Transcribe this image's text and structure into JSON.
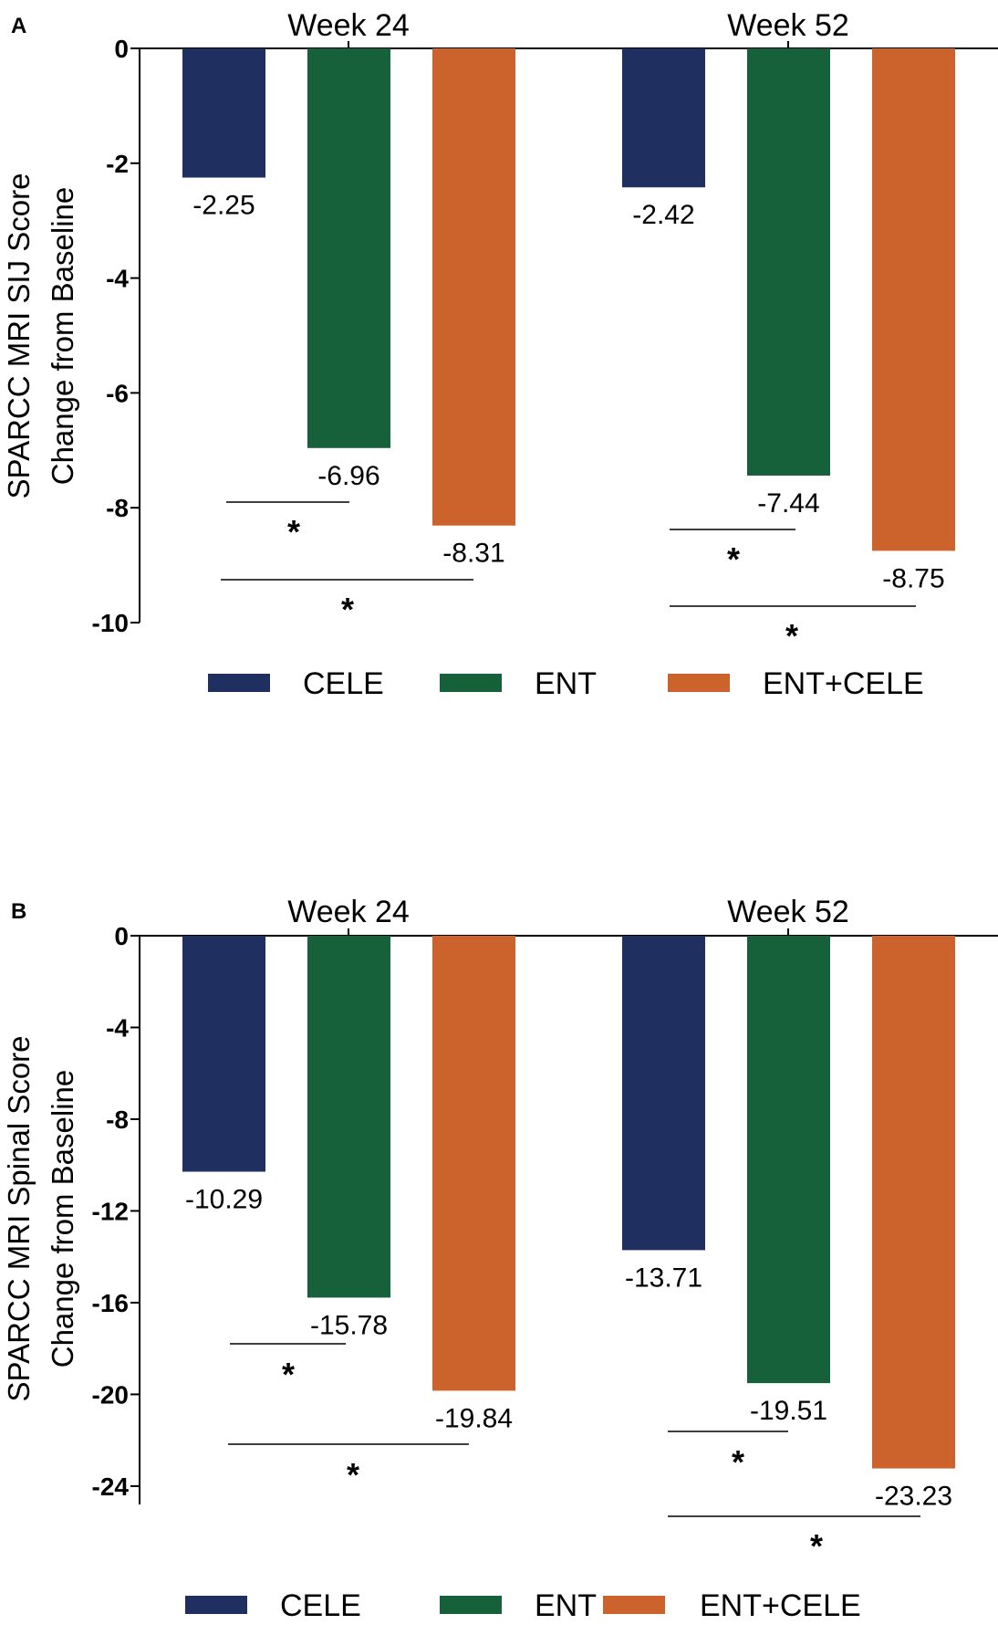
{
  "colors": {
    "CELE": "#1f3060",
    "ENT": "#16613a",
    "ENT+CELE": "#cc622c",
    "axis": "#000000"
  },
  "chart_data": [
    {
      "panel": "A",
      "type": "bar",
      "ylabel_lines": [
        "SPARCC MRI SIJ Score",
        "Change from Baseline"
      ],
      "categories": [
        "Week 24",
        "Week 52"
      ],
      "series": [
        {
          "name": "CELE",
          "values": [
            -2.25,
            -2.42
          ]
        },
        {
          "name": "ENT",
          "values": [
            -6.96,
            -7.44
          ]
        },
        {
          "name": "ENT+CELE",
          "values": [
            -8.31,
            -8.75
          ]
        }
      ],
      "data_labels": [
        [
          "-2.25",
          "-6.96",
          "-8.31"
        ],
        [
          "-2.42",
          "-7.44",
          "-8.75"
        ]
      ],
      "yticks": [
        "0",
        "-2",
        "-4",
        "-6",
        "-8",
        "-10"
      ],
      "ylim": [
        -10,
        0
      ],
      "significance": [
        {
          "group": 0,
          "from": "CELE",
          "to": "ENT",
          "label": "*"
        },
        {
          "group": 0,
          "from": "CELE",
          "to": "ENT+CELE",
          "label": "*"
        },
        {
          "group": 1,
          "from": "CELE",
          "to": "ENT",
          "label": "*"
        },
        {
          "group": 1,
          "from": "CELE",
          "to": "ENT+CELE",
          "label": "*"
        }
      ],
      "legend": [
        "CELE",
        "ENT",
        "ENT+CELE"
      ],
      "legend_position": "bottom"
    },
    {
      "panel": "B",
      "type": "bar",
      "ylabel_lines": [
        "SPARCC MRI Spinal Score",
        "Change from Baseline"
      ],
      "categories": [
        "Week 24",
        "Week 52"
      ],
      "series": [
        {
          "name": "CELE",
          "values": [
            -10.29,
            -13.71
          ]
        },
        {
          "name": "ENT",
          "values": [
            -15.78,
            -19.51
          ]
        },
        {
          "name": "ENT+CELE",
          "values": [
            -19.84,
            -23.23
          ]
        }
      ],
      "data_labels": [
        [
          "-10.29",
          "-15.78",
          "-19.84"
        ],
        [
          "-13.71",
          "-19.51",
          "-23.23"
        ]
      ],
      "yticks": [
        "0",
        "-4",
        "-8",
        "-12",
        "-16",
        "-20",
        "-24"
      ],
      "ylim": [
        -24.8,
        0
      ],
      "significance": [
        {
          "group": 0,
          "from": "CELE",
          "to": "ENT",
          "label": "*"
        },
        {
          "group": 0,
          "from": "CELE",
          "to": "ENT+CELE",
          "label": "*"
        },
        {
          "group": 1,
          "from": "CELE",
          "to": "ENT",
          "label": "*"
        },
        {
          "group": 1,
          "from": "CELE",
          "to": "ENT+CELE",
          "label": "*"
        }
      ],
      "legend": [
        "CELE",
        "ENT",
        "ENT+CELE"
      ],
      "legend_position": "bottom"
    }
  ]
}
